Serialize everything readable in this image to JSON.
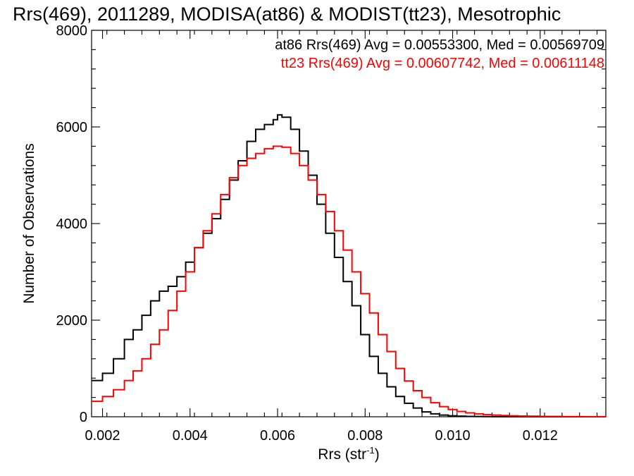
{
  "chart_data": {
    "type": "line",
    "title": "Rrs(469), 2011289, MODISA(at86) & MODIST(tt23), Mesotrophic",
    "xlabel": "Rrs (str",
    "xlabel_sup": "-1",
    "xlabel_close": ")",
    "ylabel": "Number of Observations",
    "xlim": [
      0.00175,
      0.0135
    ],
    "ylim": [
      0,
      8000
    ],
    "x_ticks": [
      0.002,
      0.004,
      0.006,
      0.008,
      0.01,
      0.012
    ],
    "x_tick_labels": [
      "0.002",
      "0.004",
      "0.006",
      "0.008",
      "0.010",
      "0.012"
    ],
    "y_ticks": [
      0,
      2000,
      4000,
      6000,
      8000
    ],
    "y_tick_labels": [
      "0",
      "2000",
      "4000",
      "6000",
      "8000"
    ],
    "grid": false,
    "legend_position": "top-right",
    "series": [
      {
        "name": "at86 Rrs(469) Avg = 0.00553300, Med = 0.00569709",
        "color": "#000000",
        "x": [
          0.00175,
          0.002,
          0.00225,
          0.0025,
          0.0027,
          0.0029,
          0.0031,
          0.0033,
          0.0035,
          0.0037,
          0.0039,
          0.0041,
          0.0043,
          0.0045,
          0.0047,
          0.0049,
          0.0051,
          0.0053,
          0.0055,
          0.0057,
          0.0059,
          0.006,
          0.0061,
          0.0063,
          0.0065,
          0.0067,
          0.0069,
          0.0071,
          0.0073,
          0.0075,
          0.0077,
          0.0079,
          0.0081,
          0.0083,
          0.0085,
          0.0087,
          0.0089,
          0.0091,
          0.0093,
          0.0095,
          0.0097,
          0.0099,
          0.0101,
          0.0103,
          0.0105,
          0.0107,
          0.0109,
          0.0111,
          0.0113,
          0.0115,
          0.0117,
          0.012,
          0.0125,
          0.013,
          0.0135
        ],
        "values": [
          750,
          900,
          1200,
          1600,
          1800,
          2100,
          2400,
          2600,
          2700,
          2900,
          3200,
          3500,
          3800,
          4100,
          4500,
          4900,
          5300,
          5700,
          5950,
          6050,
          6150,
          6250,
          6200,
          5950,
          5500,
          5000,
          4400,
          3800,
          3300,
          2800,
          2300,
          1700,
          1250,
          900,
          620,
          420,
          280,
          180,
          100,
          60,
          35,
          20,
          12,
          8,
          5,
          3,
          2,
          1,
          1,
          0,
          0,
          0,
          0,
          0,
          0
        ]
      },
      {
        "name": "tt23 Rrs(469) Avg = 0.00607742, Med = 0.00611148",
        "color": "#ff0000",
        "x": [
          0.00175,
          0.002,
          0.00225,
          0.0025,
          0.0027,
          0.0029,
          0.0031,
          0.0033,
          0.0035,
          0.0037,
          0.0039,
          0.0041,
          0.0043,
          0.0045,
          0.0047,
          0.0049,
          0.0051,
          0.0053,
          0.0055,
          0.0057,
          0.0059,
          0.0061,
          0.0063,
          0.0065,
          0.0067,
          0.0069,
          0.0071,
          0.0073,
          0.0075,
          0.0077,
          0.0079,
          0.0081,
          0.0083,
          0.0085,
          0.0087,
          0.0089,
          0.0091,
          0.0093,
          0.0095,
          0.0097,
          0.0099,
          0.0101,
          0.0103,
          0.0105,
          0.0107,
          0.0109,
          0.0111,
          0.0113,
          0.0115,
          0.0117,
          0.012,
          0.0125,
          0.013,
          0.0135
        ],
        "values": [
          320,
          420,
          560,
          750,
          950,
          1200,
          1500,
          1800,
          2200,
          2600,
          3000,
          3500,
          3850,
          4200,
          4600,
          4950,
          5200,
          5350,
          5450,
          5550,
          5600,
          5580,
          5450,
          5200,
          4900,
          4600,
          4250,
          3850,
          3450,
          3000,
          2550,
          2150,
          1700,
          1350,
          1000,
          740,
          540,
          400,
          290,
          210,
          150,
          110,
          80,
          60,
          45,
          35,
          25,
          20,
          15,
          12,
          8,
          4,
          2,
          1
        ]
      }
    ]
  }
}
